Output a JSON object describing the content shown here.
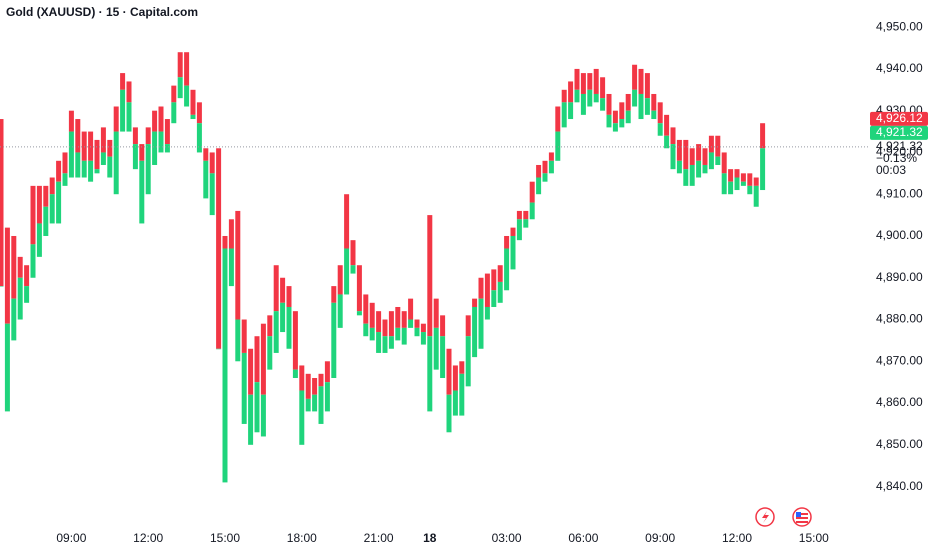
{
  "chart_data": {
    "type": "range-bar",
    "title": "Gold (XAUUSD) · 15 · Capital.com",
    "up_color": "#f23645",
    "down_color": "#1fd47c",
    "categories": [
      null,
      null,
      null,
      null,
      null,
      null,
      null,
      null,
      null,
      null,
      null,
      "09:00",
      null,
      null,
      null,
      null,
      null,
      null,
      null,
      null,
      null,
      null,
      null,
      "12:00",
      null,
      null,
      null,
      null,
      null,
      null,
      null,
      null,
      null,
      null,
      null,
      "15:00",
      null,
      null,
      null,
      null,
      null,
      null,
      null,
      null,
      null,
      null,
      null,
      "18:00",
      null,
      null,
      null,
      null,
      null,
      null,
      null,
      null,
      null,
      null,
      null,
      "21:00",
      null,
      null,
      null,
      null,
      null,
      null,
      null,
      "18",
      null,
      null,
      null,
      null,
      null,
      null,
      null,
      null,
      null,
      null,
      null,
      "03:00",
      null,
      null,
      null,
      null,
      null,
      null,
      null,
      null,
      null,
      null,
      null,
      "06:00",
      null,
      null,
      null,
      null,
      null,
      null,
      null,
      null,
      null,
      null,
      null,
      "09:00",
      null,
      null,
      null,
      null,
      null,
      null,
      null,
      null,
      null,
      null,
      null,
      "12:00",
      null,
      null,
      null,
      null,
      null,
      null,
      null,
      null,
      null,
      null,
      null,
      "15:00"
    ],
    "high": [
      4928,
      4902,
      4900,
      4895,
      4893,
      4912,
      4912,
      4912,
      4914,
      4918,
      4920,
      4930,
      4928,
      4925,
      4925,
      4923,
      4926,
      4923,
      4931,
      4939,
      4937,
      4926,
      4922,
      4926,
      4930,
      4931,
      4928,
      4936,
      4944,
      4944,
      4935,
      4932,
      4921,
      4920,
      4921,
      4900,
      4904,
      4906,
      4880,
      4873,
      4876,
      4879,
      4881,
      4893,
      4890,
      4888,
      4882,
      4869,
      4867,
      4866,
      4867,
      4870,
      4888,
      4893,
      4910,
      4899,
      4893,
      4886,
      4884,
      4882,
      4880,
      4882,
      4883,
      4882,
      4885,
      4880,
      4879,
      4905,
      4885,
      4881,
      4873,
      4869,
      4870,
      4881,
      4885,
      4890,
      4891,
      4892,
      4893,
      4900,
      4902,
      4906,
      4906,
      4913,
      4917,
      4918,
      4920,
      4931,
      4935,
      4937,
      4940,
      4939,
      4939,
      4940,
      4938,
      4934,
      4930,
      4932,
      4934,
      4941,
      4940,
      4939,
      4934,
      4932,
      4929,
      4926,
      4923,
      4923,
      4921,
      4922,
      4921,
      4924,
      4924,
      4920,
      4916,
      4916,
      4915,
      4915,
      4914,
      4927,
      null,
      null,
      null,
      null,
      null,
      null,
      null,
      null
    ],
    "mid": [
      4888,
      4879,
      4885,
      4890,
      4888,
      4898,
      4903,
      4907,
      4910,
      4913,
      4915,
      4925,
      4920,
      4918,
      4918,
      4916,
      4920,
      4919,
      4925,
      4935,
      4932,
      4922,
      4918,
      4922,
      4925,
      4925,
      4922,
      4932,
      4938,
      4936,
      4929,
      4927,
      4918,
      4915,
      4873,
      4897,
      4897,
      4880,
      4872,
      4862,
      4865,
      4862,
      4876,
      4882,
      4884,
      4883,
      4868,
      4863,
      4861,
      4862,
      4864,
      4865,
      4884,
      4886,
      4897,
      4893,
      4882,
      4879,
      4878,
      4877,
      4876,
      4876,
      4878,
      4878,
      4880,
      4878,
      4877,
      4876,
      4878,
      4876,
      4862,
      4863,
      4867,
      4876,
      4883,
      4885,
      4883,
      4887,
      4889,
      4897,
      4900,
      4904,
      4904,
      4908,
      4914,
      4915,
      4918,
      4925,
      4932,
      4932,
      4935,
      4934,
      4935,
      4934,
      4933,
      4929,
      4927,
      4928,
      4930,
      4935,
      4934,
      4933,
      4930,
      4927,
      4924,
      4922,
      4918,
      4916,
      4917,
      4918,
      4917,
      4920,
      4919,
      4915,
      4913,
      4914,
      4913,
      4912,
      4912,
      4921,
      null,
      null,
      null,
      null,
      null,
      null,
      null,
      null
    ],
    "low": [
      4888,
      4858,
      4875,
      4880,
      4884,
      4890,
      4895,
      4900,
      4903,
      4903,
      4912,
      4914,
      4914,
      4914,
      4913,
      4915,
      4917,
      4914,
      4910,
      4925,
      4925,
      4916,
      4903,
      4910,
      4917,
      4920,
      4920,
      4927,
      4933,
      4931,
      4928,
      4920,
      4909,
      4905,
      4873,
      4841,
      4888,
      4870,
      4855,
      4850,
      4853,
      4852,
      4868,
      4872,
      4877,
      4873,
      4866,
      4850,
      4858,
      4858,
      4855,
      4858,
      4866,
      4878,
      4886,
      4891,
      4881,
      4876,
      4875,
      4872,
      4872,
      4873,
      4875,
      4874,
      4878,
      4876,
      4874,
      4858,
      4868,
      4866,
      4853,
      4857,
      4857,
      4864,
      4871,
      4873,
      4880,
      4883,
      4884,
      4887,
      4892,
      4899,
      4902,
      4904,
      4910,
      4913,
      4915,
      4918,
      4926,
      4928,
      4932,
      4929,
      4931,
      4932,
      4930,
      4926,
      4925,
      4926,
      4927,
      4931,
      4928,
      4929,
      4928,
      4924,
      4921,
      4916,
      4915,
      4912,
      4912,
      4914,
      4915,
      4916,
      4917,
      4910,
      4910,
      4911,
      4912,
      4910,
      4907,
      4911,
      null,
      null,
      null,
      null,
      null,
      null,
      null,
      null
    ],
    "ylim": [
      4832,
      4956.5
    ],
    "yticks": [
      {
        "value": 4840,
        "label": "4,840.00"
      },
      {
        "value": 4850,
        "label": "4,850.00"
      },
      {
        "value": 4860,
        "label": "4,860.00"
      },
      {
        "value": 4870,
        "label": "4,870.00"
      },
      {
        "value": 4880,
        "label": "4,880.00"
      },
      {
        "value": 4890,
        "label": "4,890.00"
      },
      {
        "value": 4900,
        "label": "4,900.00"
      },
      {
        "value": 4910,
        "label": "4,910.00"
      },
      {
        "value": 4920,
        "label": "4,920.00"
      },
      {
        "value": 4930,
        "label": "4,930.00"
      },
      {
        "value": 4940,
        "label": "4,940.00"
      },
      {
        "value": 4950,
        "label": "4,950.00"
      }
    ],
    "price_line": {
      "value": 4921.32,
      "label": "4,921.32"
    },
    "tags": [
      {
        "value": 4926.12,
        "label": "4,926.12",
        "color": "#f23645"
      },
      {
        "value": 4921.32,
        "label": "4,921.32",
        "color": "#1fd47c"
      }
    ],
    "change": "−0.13%",
    "countdown": "00:03"
  }
}
